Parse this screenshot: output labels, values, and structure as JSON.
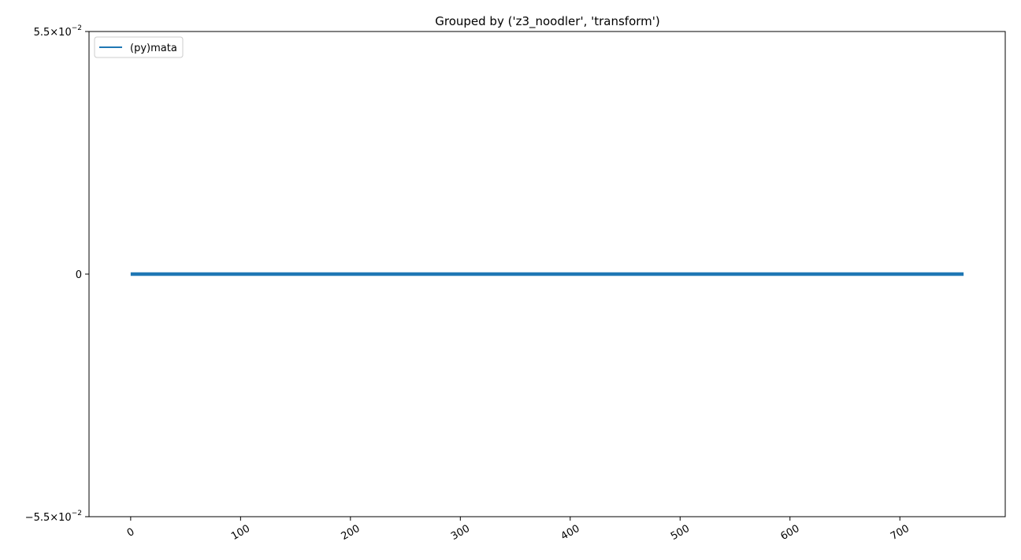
{
  "chart_data": {
    "type": "line",
    "title": "Grouped by ('z3_noodler', 'transform')",
    "xlabel": "",
    "ylabel": "",
    "xlim": [
      -37.9,
      795.9
    ],
    "ylim": [
      -0.055,
      0.055
    ],
    "xticks": [
      0,
      100,
      200,
      300,
      400,
      500,
      600,
      700
    ],
    "yticks": [
      {
        "value": -0.055,
        "mantissa": "−5.5",
        "times": "×10",
        "exponent": "−2"
      },
      {
        "value": 0,
        "label": "0"
      },
      {
        "value": 0.055,
        "mantissa": "5.5",
        "times": "×10",
        "exponent": "−2"
      }
    ],
    "legend_position": "top-left",
    "grid": false,
    "series": [
      {
        "name": "(py)mata",
        "color": "#1f77b4",
        "x": [
          0,
          758
        ],
        "y": [
          0,
          0
        ]
      }
    ]
  }
}
